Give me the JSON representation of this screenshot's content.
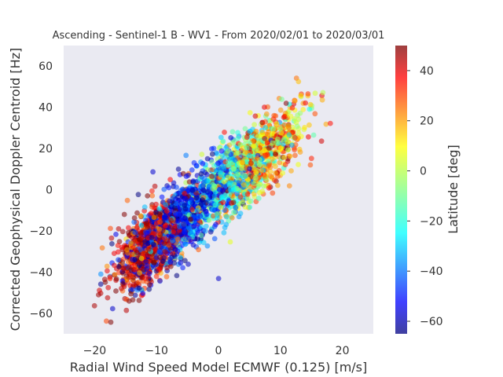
{
  "chart_data": {
    "type": "scatter",
    "title": "Ascending - Sentinel-1 B - WV1 - From 2020/02/01 to 2020/03/01",
    "xlabel": "Radial Wind Speed Model ECMWF (0.125) [m/s]",
    "ylabel": "Corrected Geophysical Doppler Centroid [Hz]",
    "xlim": [
      -25,
      25
    ],
    "ylim": [
      -70,
      70
    ],
    "xticks": [
      -20,
      -10,
      0,
      10,
      20
    ],
    "yticks": [
      -60,
      -40,
      -20,
      0,
      20,
      40,
      60
    ],
    "grid": false,
    "colorbar": {
      "label": "Latitude [deg]",
      "range": [
        -65,
        50
      ],
      "ticks": [
        -60,
        -40,
        -20,
        0,
        20,
        40
      ],
      "colormap": "jet"
    },
    "point_cloud": {
      "x_range": [
        -21,
        19
      ],
      "y_range": [
        -66,
        57
      ],
      "trend": "positive correlation",
      "approx_fit": {
        "slope": 2.4,
        "intercept": 0
      },
      "dense_clusters": [
        {
          "x": -11,
          "y": -38,
          "latitude": 55
        },
        {
          "x": -8,
          "y": -25,
          "latitude": -55
        },
        {
          "x": 0,
          "y": 5,
          "latitude": -15
        },
        {
          "x": 8,
          "y": 30,
          "latitude": 20
        }
      ]
    }
  },
  "colors": {
    "plot_background": "#eaeaf2",
    "text": "#333333"
  }
}
